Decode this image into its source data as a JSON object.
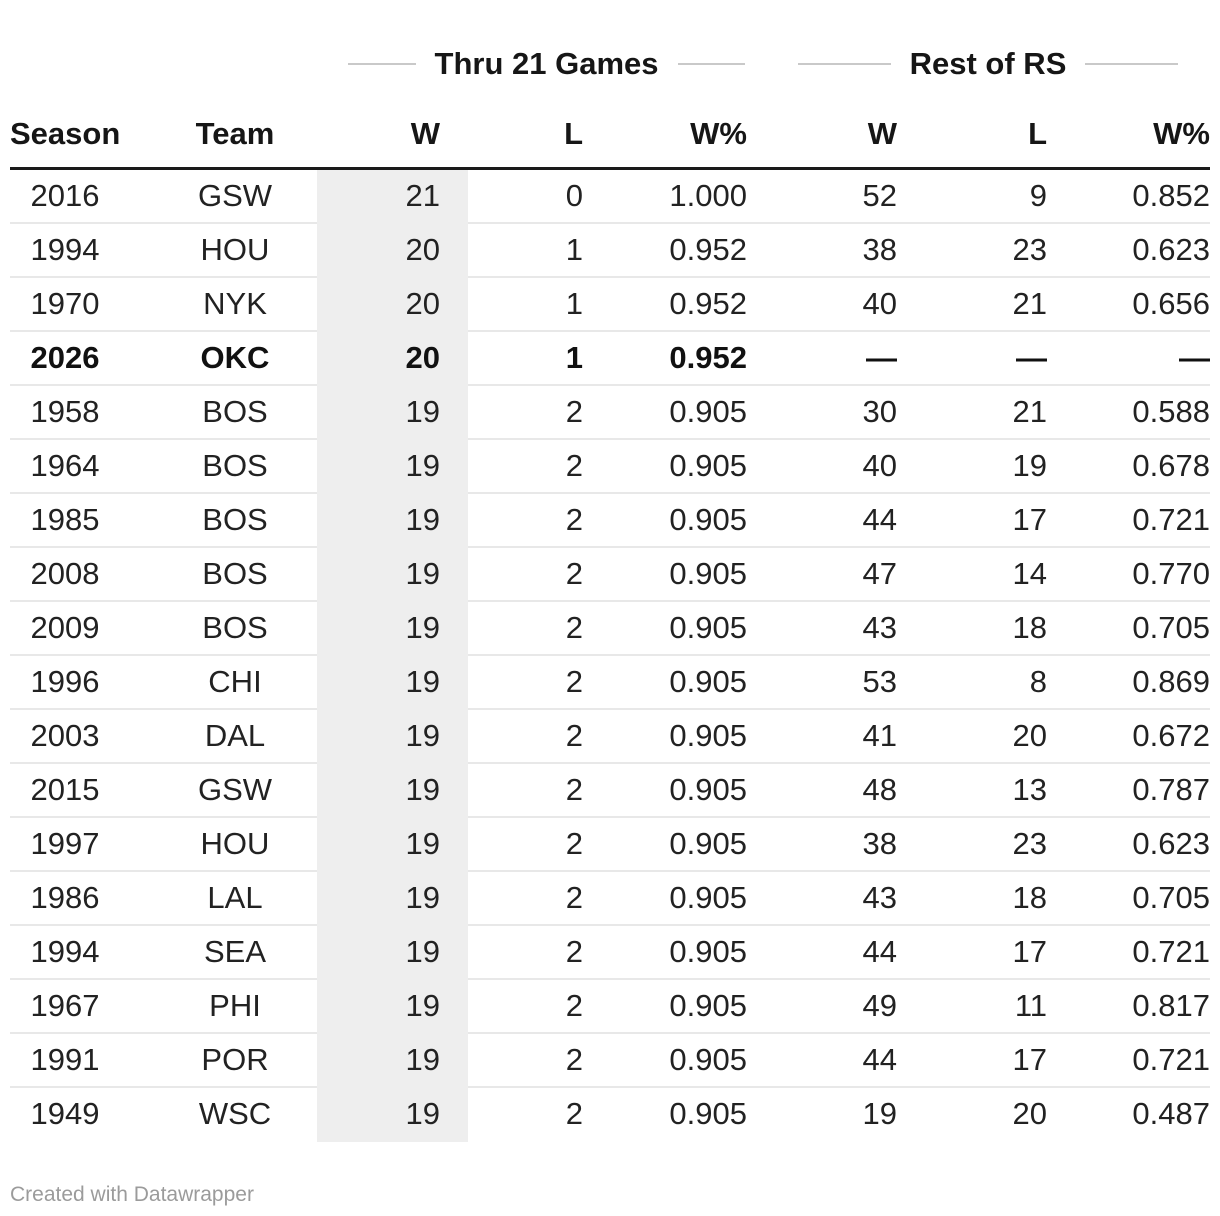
{
  "chart_data": {
    "type": "table",
    "column_groups": [
      {
        "label": "Thru 21 Games"
      },
      {
        "label": "Rest of RS"
      }
    ],
    "columns": [
      "Season",
      "Team",
      "W",
      "L",
      "W%",
      "W",
      "L",
      "W%"
    ],
    "rows": [
      [
        "2016",
        "GSW",
        "21",
        "0",
        "1.000",
        "52",
        "9",
        "0.852"
      ],
      [
        "1994",
        "HOU",
        "20",
        "1",
        "0.952",
        "38",
        "23",
        "0.623"
      ],
      [
        "1970",
        "NYK",
        "20",
        "1",
        "0.952",
        "40",
        "21",
        "0.656"
      ],
      [
        "2026",
        "OKC",
        "20",
        "1",
        "0.952",
        "—",
        "—",
        "—"
      ],
      [
        "1958",
        "BOS",
        "19",
        "2",
        "0.905",
        "30",
        "21",
        "0.588"
      ],
      [
        "1964",
        "BOS",
        "19",
        "2",
        "0.905",
        "40",
        "19",
        "0.678"
      ],
      [
        "1985",
        "BOS",
        "19",
        "2",
        "0.905",
        "44",
        "17",
        "0.721"
      ],
      [
        "2008",
        "BOS",
        "19",
        "2",
        "0.905",
        "47",
        "14",
        "0.770"
      ],
      [
        "2009",
        "BOS",
        "19",
        "2",
        "0.905",
        "43",
        "18",
        "0.705"
      ],
      [
        "1996",
        "CHI",
        "19",
        "2",
        "0.905",
        "53",
        "8",
        "0.869"
      ],
      [
        "2003",
        "DAL",
        "19",
        "2",
        "0.905",
        "41",
        "20",
        "0.672"
      ],
      [
        "2015",
        "GSW",
        "19",
        "2",
        "0.905",
        "48",
        "13",
        "0.787"
      ],
      [
        "1997",
        "HOU",
        "19",
        "2",
        "0.905",
        "38",
        "23",
        "0.623"
      ],
      [
        "1986",
        "LAL",
        "19",
        "2",
        "0.905",
        "43",
        "18",
        "0.705"
      ],
      [
        "1994",
        "SEA",
        "19",
        "2",
        "0.905",
        "44",
        "17",
        "0.721"
      ],
      [
        "1967",
        "PHI",
        "19",
        "2",
        "0.905",
        "49",
        "11",
        "0.817"
      ],
      [
        "1991",
        "POR",
        "19",
        "2",
        "0.905",
        "44",
        "17",
        "0.721"
      ],
      [
        "1949",
        "WSC",
        "19",
        "2",
        "0.905",
        "19",
        "20",
        "0.487"
      ]
    ],
    "emphasized_row_index": 3,
    "highlighted_column_index": 2,
    "layout_hints": {
      "highlight_background": "#eeeeee",
      "rule_color": "#1a1a1a",
      "separator_color": "#e8e8e8",
      "group_line_color": "#c9c9c9"
    }
  },
  "footer": {
    "credit": "Created with Datawrapper"
  }
}
